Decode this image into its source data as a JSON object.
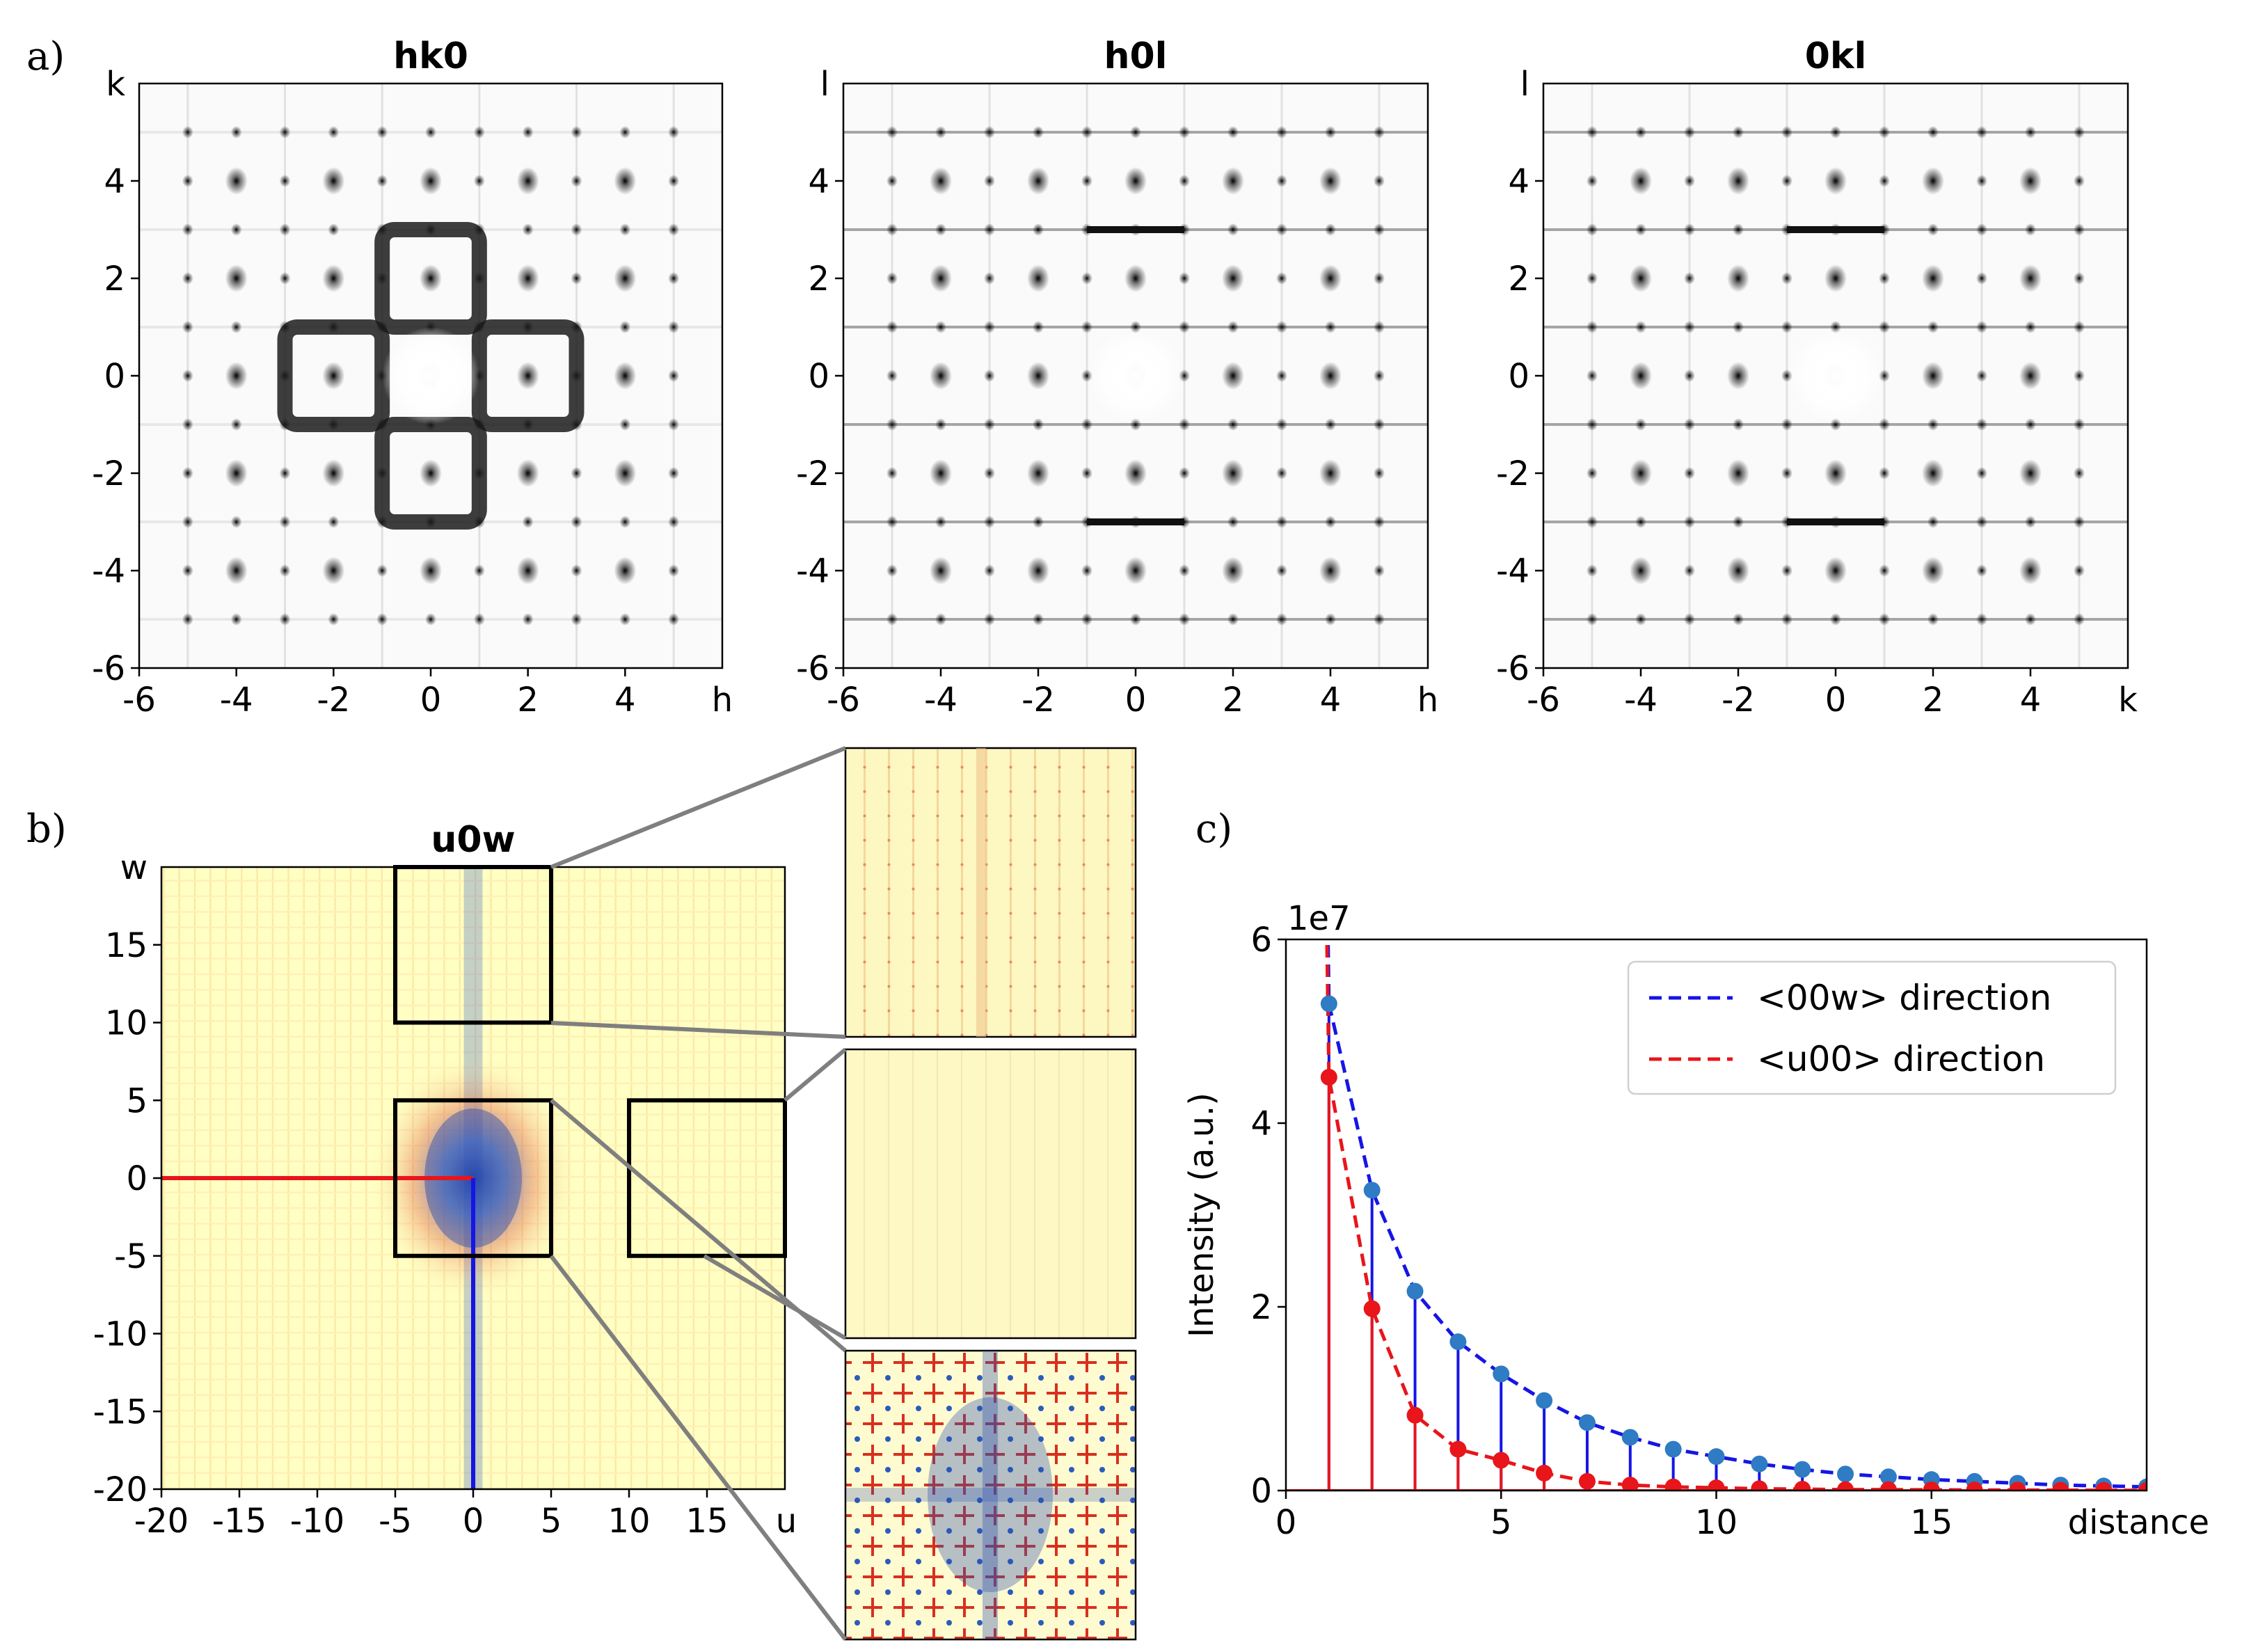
{
  "figure": {
    "panel_labels": [
      "a)",
      "b)",
      "c)"
    ]
  },
  "chart_data": [
    {
      "type": "heatmap",
      "title": "hk0",
      "xlabel": "h",
      "ylabel": "k",
      "xlim": [
        -6,
        6
      ],
      "ylim": [
        -6,
        6
      ],
      "xticks": [
        "-6",
        "-4",
        "-2",
        "0",
        "2",
        "4"
      ],
      "yticks": [
        "-6",
        "-4",
        "-2",
        "0",
        "2",
        "4"
      ],
      "colormap": "greys"
    },
    {
      "type": "heatmap",
      "title": "h0l",
      "xlabel": "h",
      "ylabel": "l",
      "xlim": [
        -6,
        6
      ],
      "ylim": [
        -6,
        6
      ],
      "xticks": [
        "-6",
        "-4",
        "-2",
        "0",
        "2",
        "4"
      ],
      "yticks": [
        "-6",
        "-4",
        "-2",
        "0",
        "2",
        "4"
      ],
      "colormap": "greys"
    },
    {
      "type": "heatmap",
      "title": "0kl",
      "xlabel": "k",
      "ylabel": "l",
      "xlim": [
        -6,
        6
      ],
      "ylim": [
        -6,
        6
      ],
      "xticks": [
        "-6",
        "-4",
        "-2",
        "0",
        "2",
        "4"
      ],
      "yticks": [
        "-6",
        "-4",
        "-2",
        "0",
        "2",
        "4"
      ],
      "colormap": "greys"
    },
    {
      "type": "heatmap",
      "title": "u0w",
      "xlabel": "u",
      "ylabel": "w",
      "xlim": [
        -20,
        20
      ],
      "ylim": [
        -20,
        20
      ],
      "xticks": [
        "-20",
        "-15",
        "-10",
        "-5",
        "0",
        "5",
        "10",
        "15"
      ],
      "yticks": [
        "-20",
        "-15",
        "-10",
        "-5",
        "0",
        "5",
        "10",
        "15"
      ],
      "colormap": "red-yellow-blue",
      "highlight_boxes": [
        {
          "u": [
            -5,
            5
          ],
          "w": [
            10,
            20
          ]
        },
        {
          "u": [
            -5,
            5
          ],
          "w": [
            -5,
            5
          ]
        },
        {
          "u": [
            10,
            20
          ],
          "w": [
            -5,
            5
          ]
        }
      ],
      "line_cuts": [
        {
          "color": "#e8151b",
          "from": [
            -20,
            0
          ],
          "to": [
            0,
            0
          ]
        },
        {
          "color": "#1515e6",
          "from": [
            0,
            -20
          ],
          "to": [
            0,
            0
          ]
        }
      ]
    },
    {
      "type": "line",
      "title": "",
      "xlabel": "distance",
      "ylabel": "Intensity (a.u.)",
      "offset_text": "1e7",
      "xlim": [
        0,
        20
      ],
      "ylim": [
        0,
        6
      ],
      "xticks": [
        "0",
        "5",
        "10",
        "15"
      ],
      "yticks": [
        "0",
        "2",
        "4",
        "6"
      ],
      "legend_position": "top-right",
      "series": [
        {
          "name": "<00w> direction",
          "color": "#1515e6",
          "marker_color": "#2f7bc4",
          "x": [
            1,
            2,
            3,
            4,
            5,
            6,
            7,
            8,
            9,
            10,
            11,
            12,
            13,
            14,
            15,
            16,
            17,
            18,
            19,
            20
          ],
          "y": [
            5.3,
            3.27,
            2.17,
            1.62,
            1.27,
            0.98,
            0.74,
            0.58,
            0.45,
            0.37,
            0.29,
            0.23,
            0.18,
            0.15,
            0.12,
            0.1,
            0.08,
            0.06,
            0.05,
            0.04
          ]
        },
        {
          "name": "<u00> direction",
          "color": "#e8151b",
          "marker_color": "#e8151b",
          "x": [
            1,
            2,
            3,
            4,
            5,
            6,
            7,
            8,
            9,
            10,
            11,
            12,
            13,
            14,
            15,
            16,
            17,
            18,
            19,
            20
          ],
          "y": [
            4.5,
            1.98,
            0.82,
            0.45,
            0.33,
            0.19,
            0.1,
            0.06,
            0.04,
            0.03,
            0.02,
            0.015,
            0.01,
            0.01,
            0.008,
            0.006,
            0.005,
            0.004,
            0.003,
            0.002
          ]
        }
      ]
    }
  ]
}
